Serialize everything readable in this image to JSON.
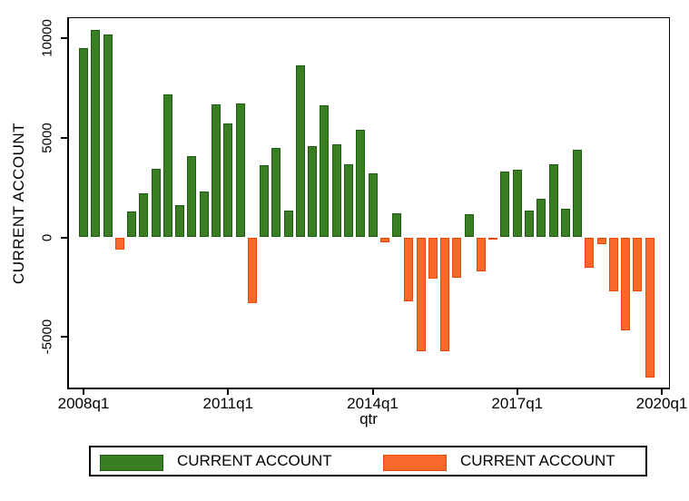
{
  "chart_data": {
    "type": "bar",
    "title": "",
    "xlabel": "qtr",
    "ylabel": "CURRENT ACCOUNT",
    "categories": [
      "2008q1",
      "2008q2",
      "2008q3",
      "2008q4",
      "2009q1",
      "2009q2",
      "2009q3",
      "2009q4",
      "2010q1",
      "2010q2",
      "2010q3",
      "2010q4",
      "2011q1",
      "2011q2",
      "2011q3",
      "2011q4",
      "2012q1",
      "2012q2",
      "2012q3",
      "2012q4",
      "2013q1",
      "2013q2",
      "2013q3",
      "2013q4",
      "2014q1",
      "2014q2",
      "2014q3",
      "2014q4",
      "2015q1",
      "2015q2",
      "2015q3",
      "2015q4",
      "2016q1",
      "2016q2",
      "2016q3",
      "2016q4",
      "2017q1",
      "2017q2",
      "2017q3",
      "2017q4",
      "2018q1",
      "2018q2",
      "2018q3",
      "2018q4",
      "2019q1",
      "2019q2",
      "2019q3",
      "2019q4"
    ],
    "values": [
      9500,
      10430,
      10170,
      -600,
      1280,
      2210,
      3430,
      7200,
      1640,
      4090,
      2290,
      6660,
      5700,
      6730,
      -3290,
      3610,
      4500,
      1340,
      8650,
      4570,
      6650,
      4650,
      3690,
      5410,
      3230,
      -260,
      1230,
      -3200,
      -5730,
      -2080,
      -5730,
      -2040,
      1140,
      -1690,
      -80,
      3290,
      3410,
      1360,
      1940,
      3680,
      1440,
      4400,
      -1540,
      -360,
      -2720,
      -4660,
      -2720,
      -7020
    ],
    "ylim": [
      -7590,
      11050
    ],
    "yticks": [
      10000,
      5000,
      0,
      -5000
    ],
    "ytick_labels": [
      "10000",
      "5000",
      "0",
      "-5000"
    ],
    "xtick_indices": [
      0,
      12,
      24,
      36,
      48
    ],
    "xtick_labels": [
      "2008q1",
      "2011q1",
      "2014q1",
      "2017q1",
      "2020q1"
    ],
    "grid": false,
    "colors": {
      "positive_fill": "#3a7d23",
      "positive_border": "#1c5c14",
      "negative_fill": "#f9692b",
      "negative_border": "#e8490b",
      "axis": "#000000",
      "background": "#ffffff"
    },
    "legend": {
      "position": "bottom",
      "entries": [
        {
          "label": "CURRENT ACCOUNT",
          "series": "positive"
        },
        {
          "label": "CURRENT ACCOUNT",
          "series": "negative"
        }
      ]
    }
  }
}
